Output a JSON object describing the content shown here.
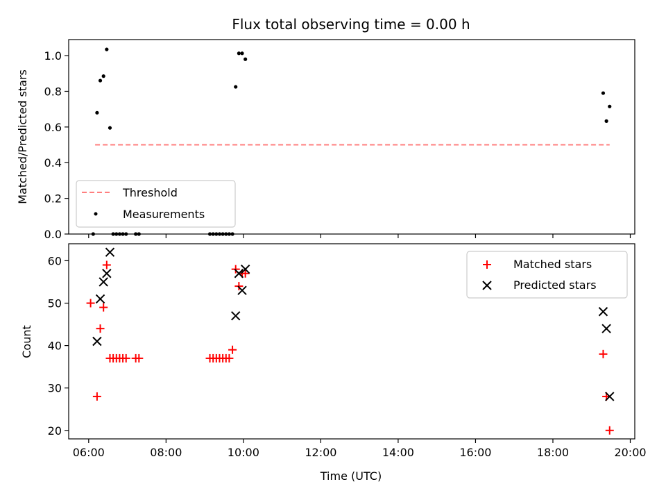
{
  "colors": {
    "threshold": "#ff7f7f",
    "measurements": "#000000",
    "matched": "#ff0000",
    "predicted": "#000000",
    "frame": "#000000",
    "legend_edge": "#cccccc"
  },
  "chart_data": [
    {
      "type": "scatter",
      "title": "Flux total observing time = 0.00 h",
      "xlabel": "",
      "ylabel": "Matched/Predicted stars",
      "xlim": [
        "05:29",
        "20:07"
      ],
      "ylim": [
        0.0,
        1.09
      ],
      "yticks": [
        0.0,
        0.2,
        0.4,
        0.6,
        0.8,
        1.0
      ],
      "ytick_labels": [
        "0.0",
        "0.2",
        "0.4",
        "0.6",
        "0.8",
        "1.0"
      ],
      "legend_position": "lower-left",
      "series": [
        {
          "name": "Threshold",
          "style": "dashed-line",
          "x": [
            "06:10",
            "19:28"
          ],
          "y": [
            0.5,
            0.5
          ]
        },
        {
          "name": "Measurements",
          "style": "dot",
          "x": [
            "06:07",
            "06:13",
            "06:18",
            "06:23",
            "06:28",
            "06:33",
            "06:38",
            "06:43",
            "06:48",
            "06:53",
            "06:58",
            "07:13",
            "07:18",
            "09:08",
            "09:13",
            "09:18",
            "09:23",
            "09:28",
            "09:33",
            "09:38",
            "09:43",
            "09:48",
            "09:53",
            "09:58",
            "10:03",
            "19:18",
            "19:23",
            "19:28"
          ],
          "y": [
            0.0,
            0.68,
            0.86,
            0.885,
            1.035,
            0.595,
            0.0,
            0.0,
            0.0,
            0.0,
            0.0,
            0.0,
            0.0,
            0.0,
            0.0,
            0.0,
            0.0,
            0.0,
            0.0,
            0.0,
            0.0,
            0.825,
            1.013,
            1.013,
            0.98,
            0.79,
            0.633,
            0.715
          ]
        }
      ]
    },
    {
      "type": "scatter",
      "title": "",
      "xlabel": "Time (UTC)",
      "ylabel": "Count",
      "xlim": [
        "05:29",
        "20:07"
      ],
      "ylim": [
        18,
        64
      ],
      "yticks": [
        20,
        30,
        40,
        50,
        60
      ],
      "ytick_labels": [
        "20",
        "30",
        "40",
        "50",
        "60"
      ],
      "xticks": [
        "06:00",
        "08:00",
        "10:00",
        "12:00",
        "14:00",
        "16:00",
        "18:00",
        "20:00"
      ],
      "legend_position": "upper-right",
      "series": [
        {
          "name": "Matched stars",
          "marker": "plus",
          "x": [
            "06:03",
            "06:13",
            "06:18",
            "06:23",
            "06:28",
            "06:33",
            "06:38",
            "06:43",
            "06:48",
            "06:53",
            "06:58",
            "07:13",
            "07:18",
            "09:08",
            "09:13",
            "09:18",
            "09:23",
            "09:28",
            "09:33",
            "09:38",
            "09:43",
            "09:48",
            "09:53",
            "09:58",
            "10:03",
            "19:18",
            "19:23",
            "19:28"
          ],
          "y": [
            50,
            28,
            44,
            49,
            59,
            37,
            37,
            37,
            37,
            37,
            37,
            37,
            37,
            37,
            37,
            37,
            37,
            37,
            37,
            37,
            39,
            58,
            54,
            57,
            57,
            38,
            28,
            20
          ]
        },
        {
          "name": "Predicted stars",
          "marker": "x",
          "x": [
            "06:13",
            "06:18",
            "06:23",
            "06:28",
            "06:33",
            "09:48",
            "09:53",
            "09:58",
            "10:03",
            "19:18",
            "19:23",
            "19:28"
          ],
          "y": [
            41,
            51,
            55,
            57,
            62,
            47,
            57,
            53,
            58,
            48,
            44,
            28
          ]
        }
      ]
    }
  ]
}
